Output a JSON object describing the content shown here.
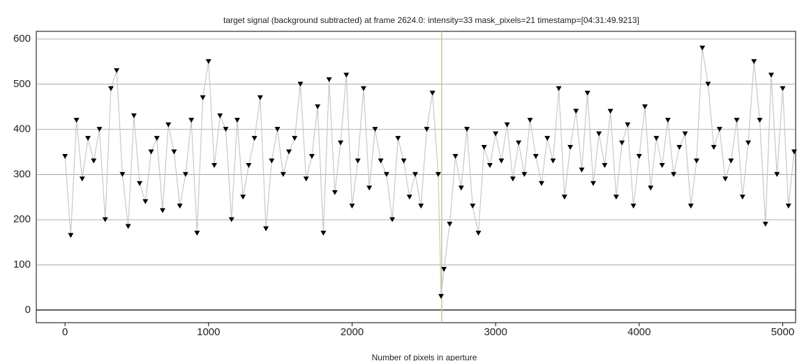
{
  "chart_data": {
    "type": "line",
    "title": "target signal (background subtracted) at frame 2624.0: intensity=33 mask_pixels=21 timestamp=[04:31:49.9213]",
    "x_label": "Number of pixels in aperture",
    "x": [
      0,
      40,
      80,
      120,
      160,
      200,
      240,
      280,
      320,
      360,
      400,
      440,
      480,
      520,
      560,
      600,
      640,
      680,
      720,
      760,
      800,
      840,
      880,
      920,
      960,
      1000,
      1040,
      1080,
      1120,
      1160,
      1200,
      1240,
      1280,
      1320,
      1360,
      1400,
      1440,
      1480,
      1520,
      1560,
      1600,
      1640,
      1680,
      1720,
      1760,
      1800,
      1840,
      1880,
      1920,
      1960,
      2000,
      2040,
      2080,
      2120,
      2160,
      2200,
      2240,
      2280,
      2320,
      2360,
      2400,
      2440,
      2480,
      2520,
      2560,
      2600,
      2620,
      2640,
      2680,
      2720,
      2760,
      2800,
      2840,
      2880,
      2920,
      2960,
      3000,
      3040,
      3080,
      3120,
      3160,
      3200,
      3240,
      3280,
      3320,
      3360,
      3400,
      3440,
      3480,
      3520,
      3560,
      3600,
      3640,
      3680,
      3720,
      3760,
      3800,
      3840,
      3880,
      3920,
      3960,
      4000,
      4040,
      4080,
      4120,
      4160,
      4200,
      4240,
      4280,
      4320,
      4360,
      4400,
      4440,
      4480,
      4520,
      4560,
      4600,
      4640,
      4680,
      4720,
      4760,
      4800,
      4840,
      4880,
      4920,
      4960,
      5000,
      5040,
      5080
    ],
    "series": [
      {
        "color": "#000000",
        "line_color": "#c8c8c8",
        "marker": "triangle-down",
        "values": [
          340,
          165,
          420,
          290,
          380,
          330,
          400,
          200,
          490,
          530,
          300,
          185,
          430,
          280,
          240,
          350,
          380,
          220,
          410,
          350,
          230,
          300,
          420,
          170,
          470,
          550,
          320,
          430,
          400,
          200,
          420,
          250,
          320,
          380,
          470,
          180,
          330,
          400,
          300,
          350,
          380,
          500,
          290,
          340,
          450,
          170,
          510,
          260,
          370,
          520,
          230,
          330,
          490,
          270,
          400,
          330,
          300,
          200,
          380,
          330,
          250,
          300,
          230,
          400,
          480,
          300,
          30,
          90,
          190,
          340,
          270,
          400,
          230,
          170,
          360,
          320,
          390,
          330,
          410,
          290,
          370,
          300,
          420,
          340,
          280,
          380,
          330,
          490,
          250,
          360,
          440,
          310,
          480,
          280,
          390,
          320,
          440,
          250,
          370,
          410,
          230,
          340,
          450,
          270,
          380,
          320,
          420,
          300,
          360,
          390,
          230,
          330,
          580,
          500,
          360,
          400,
          290,
          330,
          420,
          250,
          370,
          550,
          420,
          190,
          520,
          300,
          490,
          230,
          350
        ]
      }
    ],
    "marker_x": 2624,
    "xlim": [
      -200,
      5090
    ],
    "ylim": [
      -28,
      617
    ],
    "xticks": [
      0,
      1000,
      2000,
      3000,
      4000,
      5000
    ],
    "yticks": [
      0,
      100,
      200,
      300,
      400,
      500,
      600
    ],
    "grid": true
  }
}
